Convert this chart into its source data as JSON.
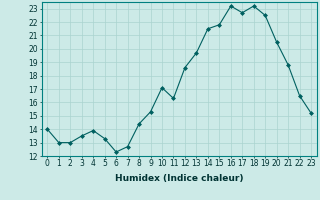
{
  "x": [
    0,
    1,
    2,
    3,
    4,
    5,
    6,
    7,
    8,
    9,
    10,
    11,
    12,
    13,
    14,
    15,
    16,
    17,
    18,
    19,
    20,
    21,
    22,
    23
  ],
  "y": [
    14.0,
    13.0,
    13.0,
    13.5,
    13.9,
    13.3,
    12.3,
    12.7,
    14.4,
    15.3,
    17.1,
    16.3,
    18.6,
    19.7,
    21.5,
    21.8,
    23.2,
    22.7,
    23.2,
    22.5,
    20.5,
    18.8,
    16.5,
    15.2
  ],
  "line_color": "#006060",
  "marker": "D",
  "marker_size": 2,
  "bg_color": "#cceae7",
  "grid_color": "#aad4d0",
  "xlabel": "Humidex (Indice chaleur)",
  "ylim": [
    12,
    23.5
  ],
  "xlim": [
    -0.5,
    23.5
  ],
  "yticks": [
    12,
    13,
    14,
    15,
    16,
    17,
    18,
    19,
    20,
    21,
    22,
    23
  ],
  "xticks": [
    0,
    1,
    2,
    3,
    4,
    5,
    6,
    7,
    8,
    9,
    10,
    11,
    12,
    13,
    14,
    15,
    16,
    17,
    18,
    19,
    20,
    21,
    22,
    23
  ],
  "tick_fontsize": 5.5,
  "xlabel_fontsize": 6.5
}
